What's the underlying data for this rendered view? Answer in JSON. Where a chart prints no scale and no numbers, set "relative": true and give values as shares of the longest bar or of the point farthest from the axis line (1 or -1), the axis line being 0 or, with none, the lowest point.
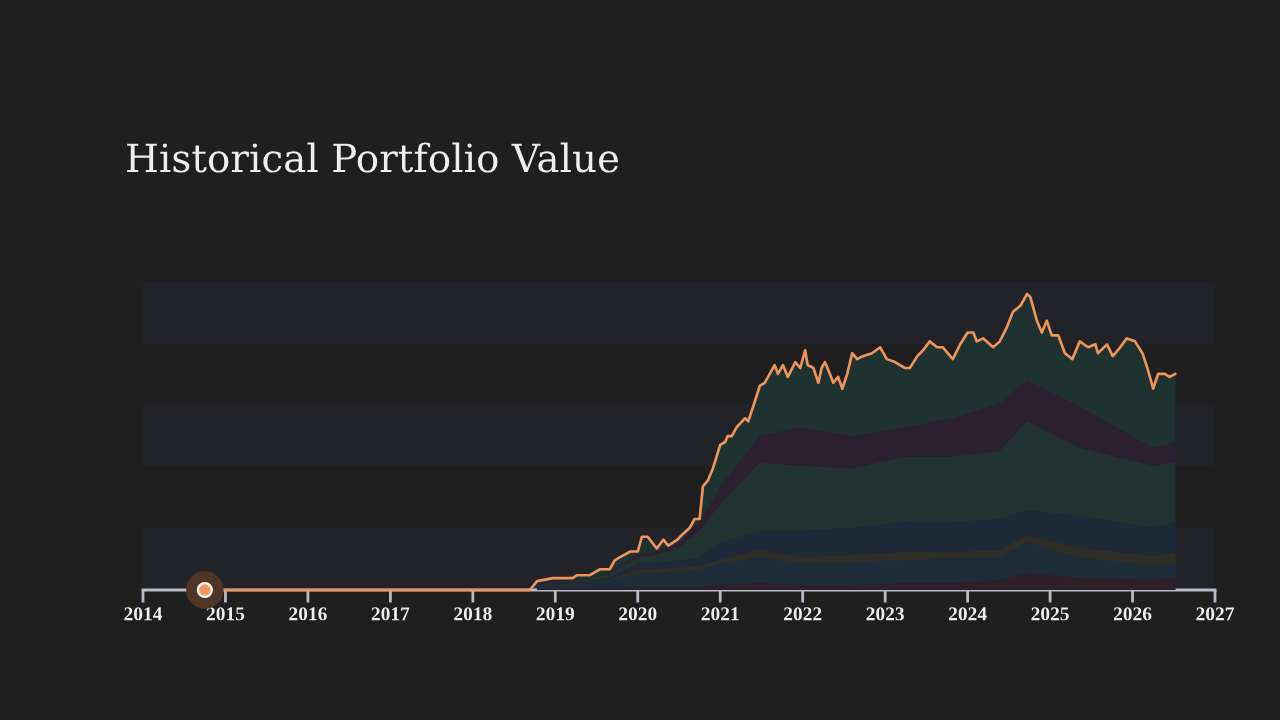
{
  "chart_data": {
    "type": "area",
    "title": "Historical Portfolio Value",
    "relative": true,
    "xlim": [
      2014,
      2027
    ],
    "xticks": [
      2014,
      2015,
      2016,
      2017,
      2018,
      2019,
      2020,
      2021,
      2022,
      2023,
      2024,
      2025,
      2026,
      2027
    ],
    "x": [
      2018.78,
      2019.42,
      2019.66,
      2020.0,
      2020.23,
      2020.48,
      2020.75,
      2021.0,
      2021.48,
      2021.97,
      2022.6,
      2023.24,
      2023.82,
      2024.39,
      2024.72,
      2025.36,
      2026.25,
      2026.52
    ],
    "bands": [
      {
        "axis": "y",
        "from": 0,
        "to": 0.21,
        "color": "#212328"
      },
      {
        "axis": "y",
        "from": 0.42,
        "to": 0.63,
        "color": "#212328"
      },
      {
        "axis": "y",
        "from": 0.83,
        "to": 1.04,
        "color": "#212328"
      }
    ],
    "series": [
      {
        "color": "#1e3230",
        "x": [
          2018.69,
          2018.78,
          2018.97,
          2019.21,
          2019.26,
          2019.42,
          2019.54,
          2019.66,
          2019.72,
          2019.78,
          2019.91,
          2020.0,
          2020.05,
          2020.12,
          2020.23,
          2020.31,
          2020.37,
          2020.48,
          2020.55,
          2020.63,
          2020.69,
          2020.75,
          2020.79,
          2020.85,
          2020.91,
          2021.0,
          2021.06,
          2021.09,
          2021.14,
          2021.2,
          2021.3,
          2021.34,
          2021.4,
          2021.48,
          2021.54,
          2021.58,
          2021.66,
          2021.7,
          2021.76,
          2021.82,
          2021.91,
          2021.97,
          2022.03,
          2022.06,
          2022.13,
          2022.19,
          2022.23,
          2022.27,
          2022.33,
          2022.37,
          2022.43,
          2022.48,
          2022.54,
          2022.6,
          2022.66,
          2022.73,
          2022.84,
          2022.94,
          2023.02,
          2023.12,
          2023.24,
          2023.3,
          2023.39,
          2023.46,
          2023.54,
          2023.63,
          2023.7,
          2023.82,
          2023.91,
          2024.0,
          2024.07,
          2024.11,
          2024.19,
          2024.31,
          2024.39,
          2024.48,
          2024.55,
          2024.64,
          2024.72,
          2024.76,
          2024.84,
          2024.9,
          2024.96,
          2025.02,
          2025.1,
          2025.18,
          2025.27,
          2025.36,
          2025.46,
          2025.55,
          2025.58,
          2025.69,
          2025.76,
          2025.85,
          2025.93,
          2026.03,
          2026.12,
          2026.18,
          2026.25,
          2026.31,
          2026.39,
          2026.45,
          2026.52
        ],
        "values": [
          0,
          0.03,
          0.04,
          0.04,
          0.05,
          0.05,
          0.07,
          0.07,
          0.1,
          0.11,
          0.13,
          0.13,
          0.18,
          0.18,
          0.14,
          0.17,
          0.15,
          0.17,
          0.19,
          0.21,
          0.24,
          0.24,
          0.35,
          0.37,
          0.41,
          0.49,
          0.5,
          0.52,
          0.52,
          0.55,
          0.58,
          0.57,
          0.62,
          0.69,
          0.7,
          0.72,
          0.76,
          0.73,
          0.76,
          0.72,
          0.77,
          0.75,
          0.81,
          0.76,
          0.75,
          0.7,
          0.75,
          0.77,
          0.73,
          0.7,
          0.72,
          0.68,
          0.73,
          0.8,
          0.78,
          0.79,
          0.8,
          0.82,
          0.78,
          0.77,
          0.75,
          0.75,
          0.79,
          0.81,
          0.84,
          0.82,
          0.82,
          0.78,
          0.83,
          0.87,
          0.87,
          0.84,
          0.85,
          0.82,
          0.84,
          0.89,
          0.94,
          0.96,
          1.0,
          0.99,
          0.91,
          0.87,
          0.91,
          0.86,
          0.86,
          0.8,
          0.78,
          0.84,
          0.82,
          0.83,
          0.8,
          0.83,
          0.79,
          0.82,
          0.85,
          0.84,
          0.8,
          0.75,
          0.68,
          0.73,
          0.73,
          0.72,
          0.73
        ]
      },
      {
        "color": "#2b1f30",
        "values": [
          0.03,
          0.04,
          0.06,
          0.12,
          0.13,
          0.155,
          0.23,
          0.35,
          0.52,
          0.55,
          0.52,
          0.55,
          0.58,
          0.63,
          0.71,
          0.62,
          0.48,
          0.5
        ]
      },
      {
        "color": "#213330",
        "values": [
          0.02,
          0.04,
          0.055,
          0.11,
          0.12,
          0.14,
          0.2,
          0.29,
          0.43,
          0.42,
          0.41,
          0.45,
          0.45,
          0.47,
          0.57,
          0.48,
          0.42,
          0.43
        ]
      },
      {
        "color": "#1d2936",
        "values": [
          0.02,
          0.03,
          0.045,
          0.09,
          0.09,
          0.1,
          0.11,
          0.16,
          0.2,
          0.2,
          0.21,
          0.23,
          0.23,
          0.24,
          0.27,
          0.25,
          0.21,
          0.23
        ]
      },
      {
        "color": "#2e2e24",
        "values": [
          0.017,
          0.027,
          0.035,
          0.068,
          0.07,
          0.075,
          0.081,
          0.101,
          0.135,
          0.111,
          0.118,
          0.128,
          0.128,
          0.135,
          0.186,
          0.142,
          0.115,
          0.125
        ]
      },
      {
        "color": "#1e2c3a",
        "values": [
          0.014,
          0.024,
          0.03,
          0.057,
          0.06,
          0.062,
          0.068,
          0.091,
          0.111,
          0.091,
          0.095,
          0.101,
          0.108,
          0.111,
          0.162,
          0.111,
          0.084,
          0.091
        ]
      },
      {
        "color": "#2d1e28",
        "values": [
          0.003,
          0.003,
          0.005,
          0.01,
          0.01,
          0.01,
          0.01,
          0.017,
          0.024,
          0.017,
          0.017,
          0.024,
          0.024,
          0.034,
          0.057,
          0.041,
          0.034,
          0.041
        ]
      },
      {
        "type": "line",
        "color": "#f0955a",
        "line_style": "solid",
        "x": [
          2014.75,
          2018.69,
          2018.78,
          2018.97,
          2019.21,
          2019.26,
          2019.42,
          2019.54,
          2019.66,
          2019.72,
          2019.78,
          2019.91,
          2020.0,
          2020.05,
          2020.12,
          2020.23,
          2020.31,
          2020.37,
          2020.48,
          2020.55,
          2020.63,
          2020.69,
          2020.75,
          2020.79,
          2020.85,
          2020.91,
          2021.0,
          2021.06,
          2021.09,
          2021.14,
          2021.2,
          2021.3,
          2021.34,
          2021.4,
          2021.48,
          2021.54,
          2021.58,
          2021.66,
          2021.7,
          2021.76,
          2021.82,
          2021.91,
          2021.97,
          2022.03,
          2022.06,
          2022.13,
          2022.19,
          2022.23,
          2022.27,
          2022.33,
          2022.37,
          2022.43,
          2022.48,
          2022.54,
          2022.6,
          2022.66,
          2022.73,
          2022.84,
          2022.94,
          2023.02,
          2023.12,
          2023.24,
          2023.3,
          2023.39,
          2023.46,
          2023.54,
          2023.63,
          2023.7,
          2023.82,
          2023.91,
          2024.0,
          2024.07,
          2024.11,
          2024.19,
          2024.31,
          2024.39,
          2024.48,
          2024.55,
          2024.64,
          2024.72,
          2024.76,
          2024.84,
          2024.9,
          2024.96,
          2025.02,
          2025.1,
          2025.18,
          2025.27,
          2025.36,
          2025.46,
          2025.55,
          2025.58,
          2025.69,
          2025.76,
          2025.85,
          2025.93,
          2026.03,
          2026.12,
          2026.18,
          2026.25,
          2026.31,
          2026.39,
          2026.45,
          2026.52
        ],
        "values": [
          0,
          0,
          0.03,
          0.04,
          0.04,
          0.05,
          0.05,
          0.07,
          0.07,
          0.1,
          0.11,
          0.13,
          0.13,
          0.18,
          0.18,
          0.14,
          0.17,
          0.15,
          0.17,
          0.19,
          0.21,
          0.24,
          0.24,
          0.35,
          0.37,
          0.41,
          0.49,
          0.5,
          0.52,
          0.52,
          0.55,
          0.58,
          0.57,
          0.62,
          0.69,
          0.7,
          0.72,
          0.76,
          0.73,
          0.76,
          0.72,
          0.77,
          0.75,
          0.81,
          0.76,
          0.75,
          0.7,
          0.75,
          0.77,
          0.73,
          0.7,
          0.72,
          0.68,
          0.73,
          0.8,
          0.78,
          0.79,
          0.8,
          0.82,
          0.78,
          0.77,
          0.75,
          0.75,
          0.79,
          0.81,
          0.84,
          0.82,
          0.82,
          0.78,
          0.83,
          0.87,
          0.87,
          0.84,
          0.85,
          0.82,
          0.84,
          0.89,
          0.94,
          0.96,
          1.0,
          0.99,
          0.91,
          0.87,
          0.91,
          0.86,
          0.86,
          0.8,
          0.78,
          0.84,
          0.82,
          0.83,
          0.8,
          0.83,
          0.79,
          0.82,
          0.85,
          0.84,
          0.8,
          0.75,
          0.68,
          0.73,
          0.73,
          0.72,
          0.73
        ]
      },
      {
        "type": "line",
        "color": "#f4975c",
        "marker": "circle",
        "x": [
          2014.75
        ],
        "values": [
          0
        ]
      }
    ]
  }
}
